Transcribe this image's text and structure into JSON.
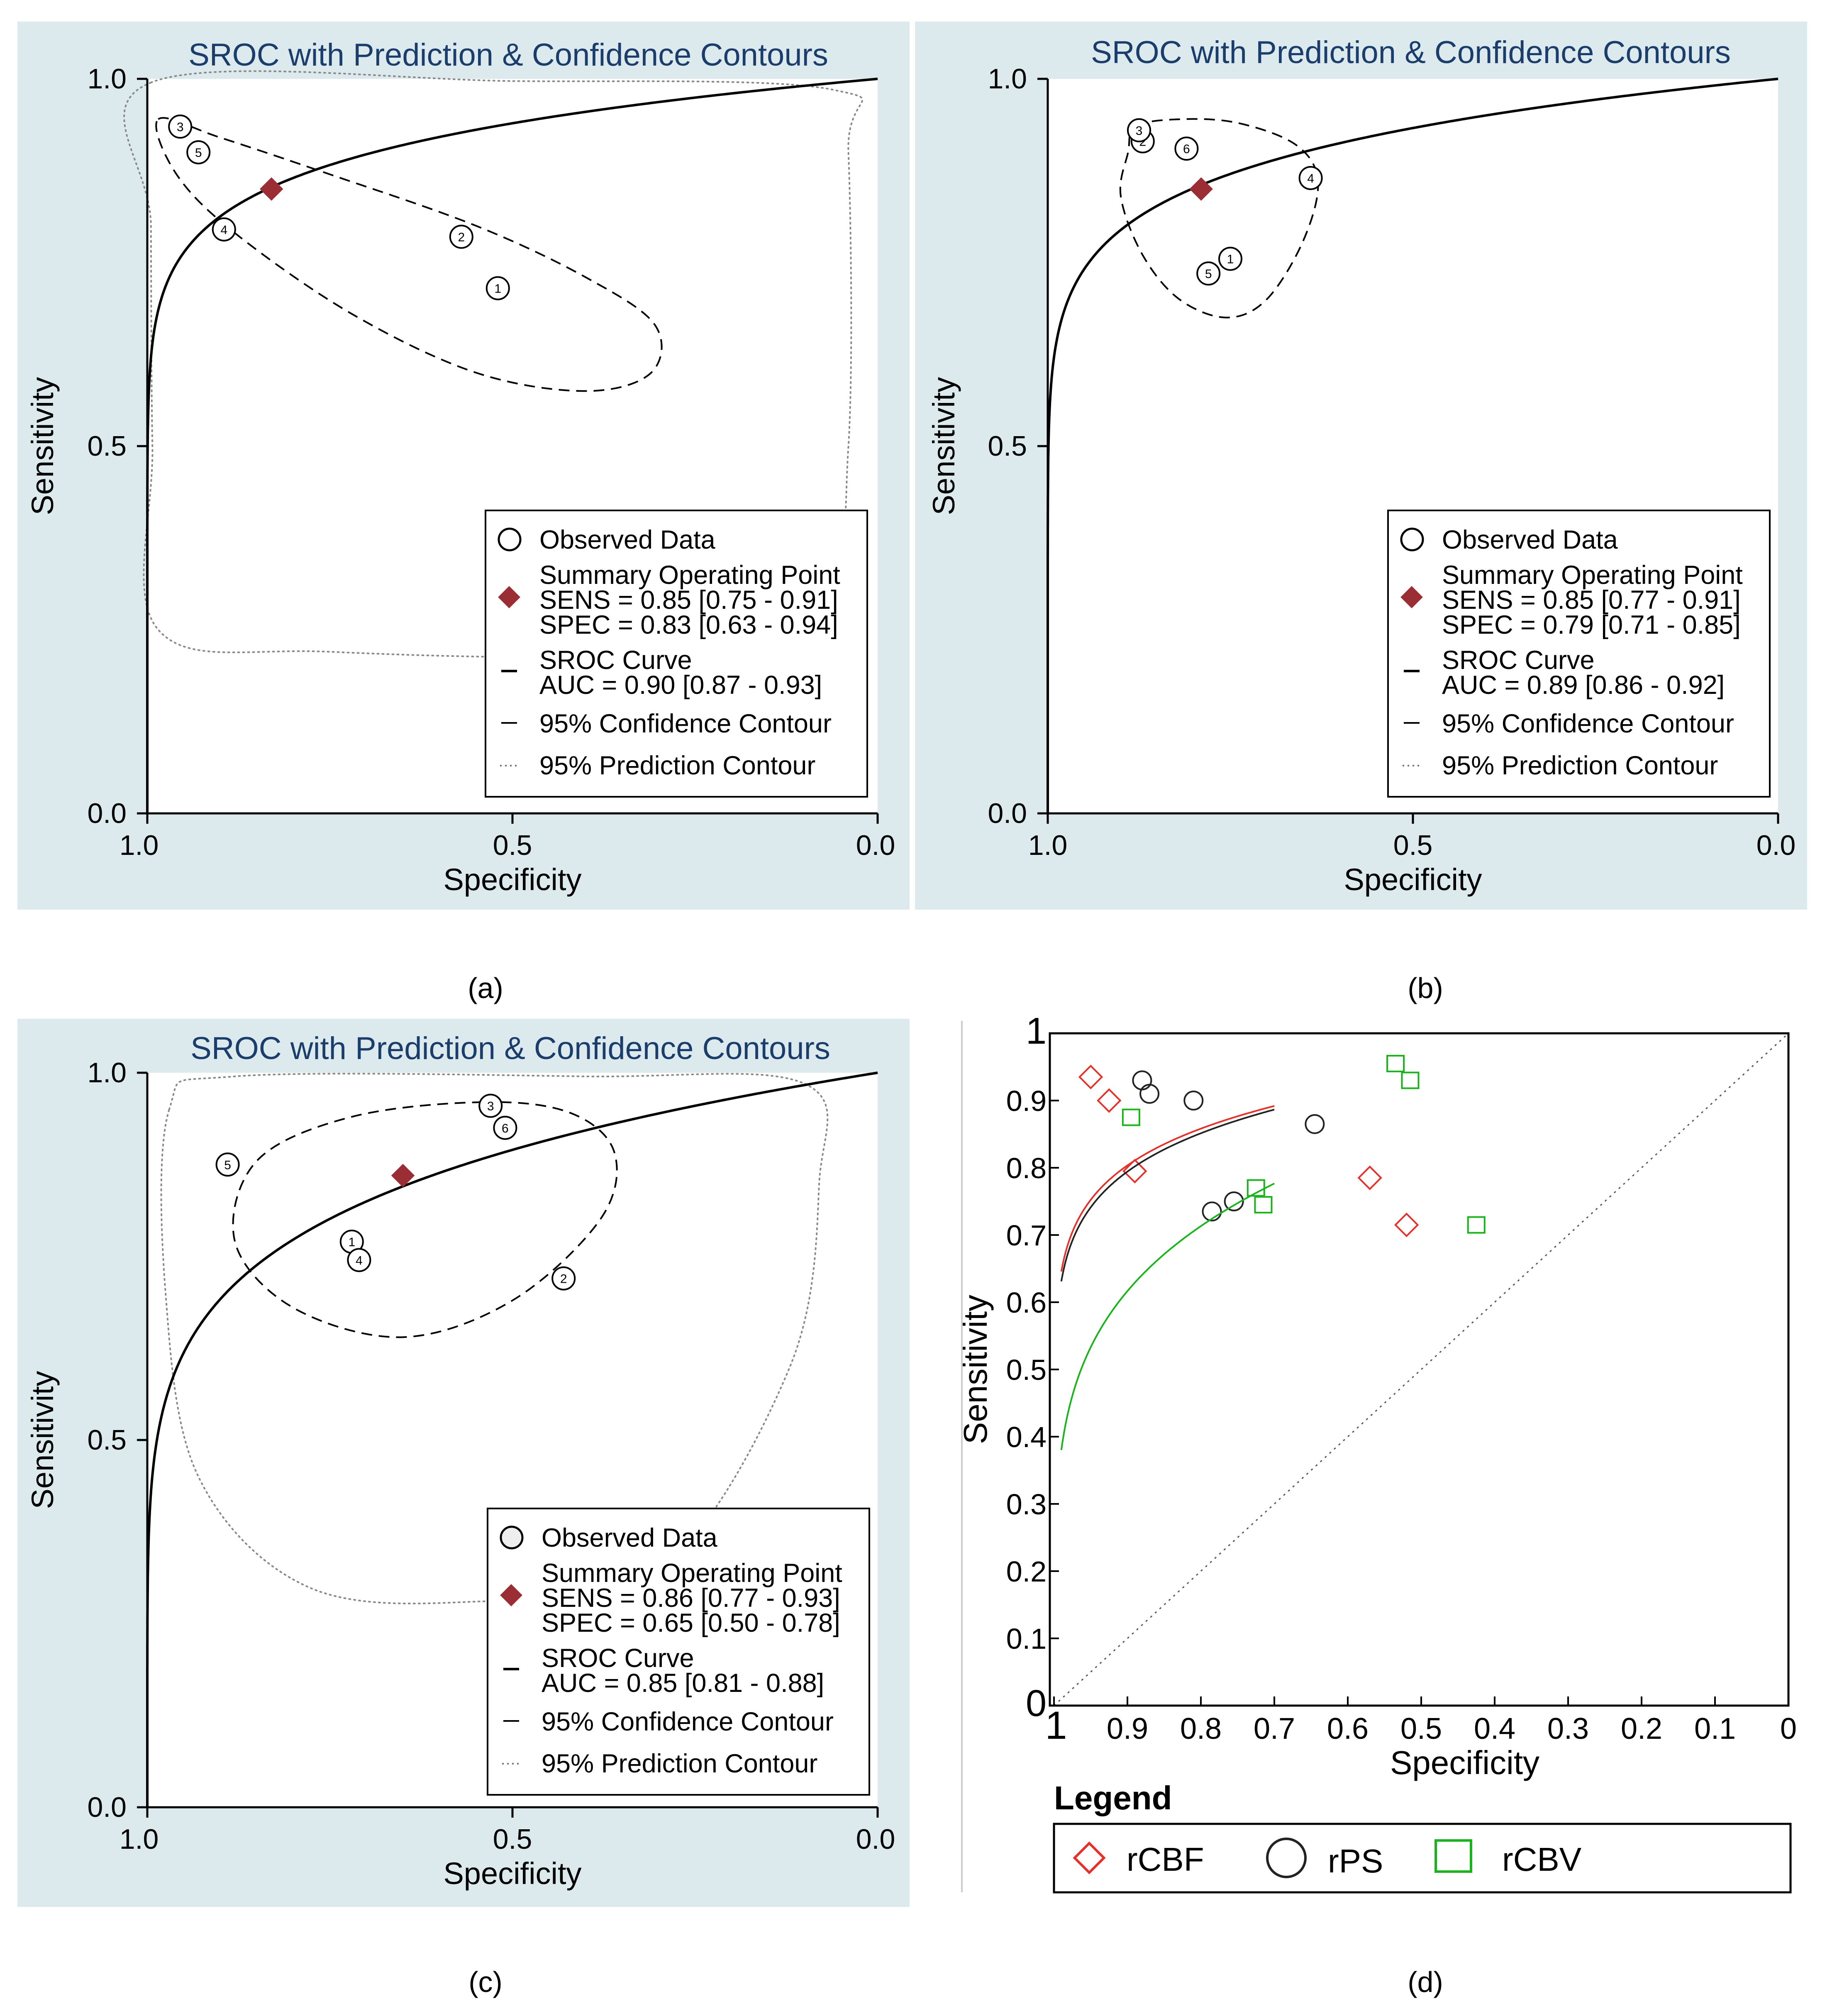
{
  "figure_labels": [
    "(a)",
    "(b)",
    "(c)",
    "(d)"
  ],
  "colors": {
    "panel_bg": "#dce9ed",
    "plot_bg": "#ffffff",
    "title": "#1a3d6b",
    "summary": "#9b2d35",
    "rcbf": "#e8302a",
    "rps": "#222222",
    "rcbv": "#19b41c",
    "reference": "#555555"
  },
  "chart_data": [
    {
      "type": "scatter",
      "panel": "a",
      "title": "SROC with Prediction & Confidence Contours",
      "xlabel": "Specificity",
      "ylabel": "Sensitivity",
      "xlim": [
        1.0,
        0.0
      ],
      "ylim": [
        0.0,
        1.0
      ],
      "xticks": [
        "1.0",
        "0.5",
        "0.0"
      ],
      "yticks": [
        "0.0",
        "0.5",
        "1.0"
      ],
      "curve_k": 0.09,
      "studies": [
        {
          "label": "1",
          "spec": 0.52,
          "sens": 0.715
        },
        {
          "label": "2",
          "spec": 0.57,
          "sens": 0.785
        },
        {
          "label": "3",
          "spec": 0.955,
          "sens": 0.935
        },
        {
          "label": "4",
          "spec": 0.895,
          "sens": 0.795
        },
        {
          "label": "5",
          "spec": 0.93,
          "sens": 0.9
        }
      ],
      "summary": {
        "spec": 0.83,
        "sens": 0.85
      },
      "confidence_contour": [
        [
          0.985,
          0.945
        ],
        [
          0.9,
          0.92
        ],
        [
          0.75,
          0.87
        ],
        [
          0.55,
          0.8
        ],
        [
          0.4,
          0.73
        ],
        [
          0.305,
          0.665
        ],
        [
          0.31,
          0.6
        ],
        [
          0.4,
          0.575
        ],
        [
          0.55,
          0.6
        ],
        [
          0.72,
          0.68
        ],
        [
          0.88,
          0.79
        ],
        [
          0.96,
          0.87
        ]
      ],
      "prediction_contour": [
        [
          0.995,
          0.995
        ],
        [
          0.5,
          0.997
        ],
        [
          0.06,
          0.985
        ],
        [
          0.04,
          0.9
        ],
        [
          0.04,
          0.5
        ],
        [
          0.08,
          0.3
        ],
        [
          0.3,
          0.22
        ],
        [
          0.75,
          0.22
        ],
        [
          0.985,
          0.25
        ],
        [
          0.993,
          0.5
        ],
        [
          0.995,
          0.8
        ]
      ],
      "legend": {
        "observed": "Observed Data",
        "summary": "Summary Operating Point",
        "sens": "SENS = 0.85 [0.75 - 0.91]",
        "spec": "SPEC = 0.83 [0.63 - 0.94]",
        "sroc": "SROC Curve",
        "auc": "AUC = 0.90 [0.87 - 0.93]",
        "conf": "95% Confidence Contour",
        "pred": "95% Prediction Contour"
      }
    },
    {
      "type": "scatter",
      "panel": "b",
      "title": "SROC with Prediction & Confidence Contours",
      "xlabel": "Specificity",
      "ylabel": "Sensitivity",
      "xlim": [
        1.0,
        0.0
      ],
      "ylim": [
        0.0,
        1.0
      ],
      "xticks": [
        "1.0",
        "0.5",
        "0.0"
      ],
      "yticks": [
        "0.0",
        "0.5",
        "1.0"
      ],
      "curve_k": 0.1,
      "studies": [
        {
          "label": "1",
          "spec": 0.75,
          "sens": 0.755
        },
        {
          "label": "2",
          "spec": 0.87,
          "sens": 0.915
        },
        {
          "label": "3",
          "spec": 0.875,
          "sens": 0.93
        },
        {
          "label": "4",
          "spec": 0.64,
          "sens": 0.865
        },
        {
          "label": "5",
          "spec": 0.78,
          "sens": 0.735
        },
        {
          "label": "6",
          "spec": 0.81,
          "sens": 0.905
        }
      ],
      "summary": {
        "spec": 0.79,
        "sens": 0.85
      },
      "confidence_contour": [
        [
          0.88,
          0.935
        ],
        [
          0.82,
          0.945
        ],
        [
          0.74,
          0.94
        ],
        [
          0.66,
          0.91
        ],
        [
          0.63,
          0.86
        ],
        [
          0.65,
          0.78
        ],
        [
          0.7,
          0.7
        ],
        [
          0.755,
          0.675
        ],
        [
          0.82,
          0.7
        ],
        [
          0.87,
          0.76
        ],
        [
          0.9,
          0.84
        ],
        [
          0.89,
          0.9
        ]
      ],
      "prediction_contour": [],
      "legend": {
        "observed": "Observed Data",
        "summary": "Summary Operating Point",
        "sens": "SENS = 0.85 [0.77 - 0.91]",
        "spec": "SPEC = 0.79 [0.71 - 0.85]",
        "sroc": "SROC Curve",
        "auc": "AUC = 0.89 [0.86 - 0.92]",
        "conf": "95% Confidence Contour",
        "pred": "95% Prediction Contour"
      }
    },
    {
      "type": "scatter",
      "panel": "c",
      "title": "SROC with Prediction & Confidence Contours",
      "xlabel": "Specificity",
      "ylabel": "Sensitivity",
      "xlim": [
        1.0,
        0.0
      ],
      "ylim": [
        0.0,
        1.0
      ],
      "xticks": [
        "1.0",
        "0.5",
        "0.0"
      ],
      "yticks": [
        "0.0",
        "0.5",
        "1.0"
      ],
      "curve_k": 0.16,
      "studies": [
        {
          "label": "1",
          "spec": 0.72,
          "sens": 0.77
        },
        {
          "label": "2",
          "spec": 0.43,
          "sens": 0.72
        },
        {
          "label": "3",
          "spec": 0.53,
          "sens": 0.955
        },
        {
          "label": "4",
          "spec": 0.71,
          "sens": 0.745
        },
        {
          "label": "5",
          "spec": 0.89,
          "sens": 0.875
        },
        {
          "label": "6",
          "spec": 0.51,
          "sens": 0.925
        }
      ],
      "summary": {
        "spec": 0.65,
        "sens": 0.86
      },
      "confidence_contour": [
        [
          0.54,
          0.96
        ],
        [
          0.42,
          0.945
        ],
        [
          0.36,
          0.89
        ],
        [
          0.38,
          0.8
        ],
        [
          0.5,
          0.69
        ],
        [
          0.65,
          0.64
        ],
        [
          0.8,
          0.68
        ],
        [
          0.88,
          0.77
        ],
        [
          0.85,
          0.88
        ],
        [
          0.72,
          0.94
        ]
      ],
      "prediction_contour": [
        [
          0.97,
          0.95
        ],
        [
          0.88,
          0.995
        ],
        [
          0.4,
          0.995
        ],
        [
          0.1,
          0.985
        ],
        [
          0.08,
          0.85
        ],
        [
          0.12,
          0.6
        ],
        [
          0.3,
          0.32
        ],
        [
          0.55,
          0.28
        ],
        [
          0.78,
          0.3
        ],
        [
          0.93,
          0.45
        ],
        [
          0.975,
          0.7
        ]
      ],
      "legend": {
        "observed": "Observed Data",
        "summary": "Summary Operating Point",
        "sens": "SENS = 0.86 [0.77 - 0.93]",
        "spec": "SPEC = 0.65 [0.50 - 0.78]",
        "sroc": "SROC Curve",
        "auc": "AUC = 0.85 [0.81 - 0.88]",
        "conf": "95% Confidence Contour",
        "pred": "95% Prediction Contour"
      }
    },
    {
      "type": "scatter",
      "panel": "d",
      "title": "",
      "xlabel": "Specificity",
      "ylabel": "Sensitivity",
      "xlim": [
        1.0,
        0.0
      ],
      "ylim": [
        0.0,
        1.0
      ],
      "xticks": [
        "1",
        "0.9",
        "0.8",
        "0.7",
        "0.6",
        "0.5",
        "0.4",
        "0.3",
        "0.2",
        "0.1",
        "0"
      ],
      "yticks": [
        "0",
        "0.1",
        "0.2",
        "0.3",
        "0.4",
        "0.5",
        "0.6",
        "0.7",
        "0.8",
        "0.9",
        "1"
      ],
      "legend_title": "Legend",
      "series": [
        {
          "name": "rCBF",
          "marker": "diamond",
          "curve_k": 0.095,
          "points": [
            {
              "spec": 0.95,
              "sens": 0.935
            },
            {
              "spec": 0.925,
              "sens": 0.9
            },
            {
              "spec": 0.89,
              "sens": 0.795
            },
            {
              "spec": 0.57,
              "sens": 0.785
            },
            {
              "spec": 0.52,
              "sens": 0.715
            }
          ]
        },
        {
          "name": "rPS",
          "marker": "circle",
          "curve_k": 0.1,
          "points": [
            {
              "spec": 0.88,
              "sens": 0.93
            },
            {
              "spec": 0.87,
              "sens": 0.91
            },
            {
              "spec": 0.81,
              "sens": 0.9
            },
            {
              "spec": 0.645,
              "sens": 0.865
            },
            {
              "spec": 0.785,
              "sens": 0.735
            },
            {
              "spec": 0.755,
              "sens": 0.75
            }
          ]
        },
        {
          "name": "rCBV",
          "marker": "square",
          "curve_k": 0.21,
          "points": [
            {
              "spec": 0.895,
              "sens": 0.875
            },
            {
              "spec": 0.535,
              "sens": 0.955
            },
            {
              "spec": 0.515,
              "sens": 0.93
            },
            {
              "spec": 0.725,
              "sens": 0.77
            },
            {
              "spec": 0.715,
              "sens": 0.745
            },
            {
              "spec": 0.425,
              "sens": 0.715
            }
          ]
        }
      ]
    }
  ]
}
